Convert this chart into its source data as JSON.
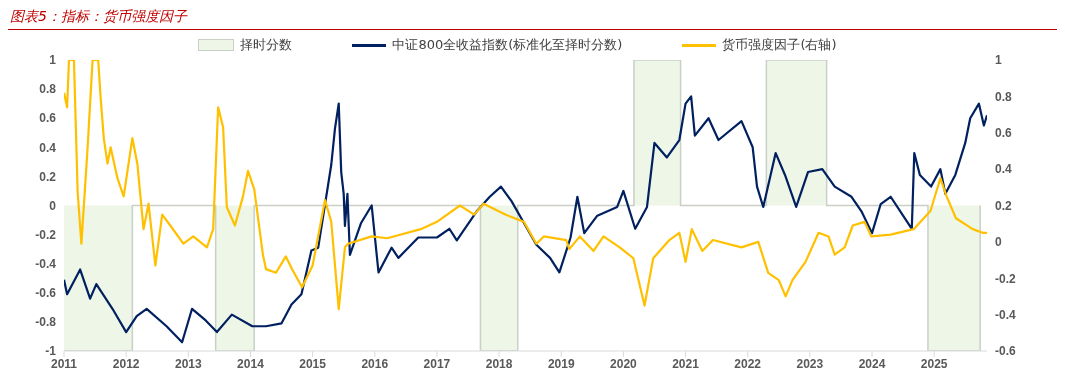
{
  "chart_data": {
    "type": "line",
    "title": "图表5：指标：货币强度因子",
    "legend": "top",
    "xlim": [
      2011,
      2025.85
    ],
    "xticks": [
      2011,
      2012,
      2013,
      2014,
      2015,
      2016,
      2017,
      2018,
      2019,
      2020,
      2021,
      2022,
      2023,
      2024,
      2025
    ],
    "ylim": [
      -1,
      1
    ],
    "yticks": [
      -1,
      -0.8,
      -0.6,
      -0.4,
      -0.2,
      0,
      0.2,
      0.4,
      0.6,
      0.8,
      1
    ],
    "y2lim": [
      -0.6,
      1
    ],
    "y2ticks": [
      -0.6,
      -0.4,
      -0.2,
      0,
      0.2,
      0.4,
      0.6,
      0.8,
      1
    ],
    "series": [
      {
        "name": "择时分数",
        "type": "area",
        "color": "#eef6e8",
        "x": [
          2011.0,
          2012.1,
          2013.44,
          2014.06,
          2017.7,
          2018.3,
          2020.17,
          2020.92,
          2022.3,
          2023.27,
          2024.9,
          2025.74
        ],
        "values": [
          -1,
          0,
          -1,
          0,
          -1,
          0,
          1,
          0,
          1,
          0,
          -1,
          0
        ]
      },
      {
        "name": "中证800全收益指数(标准化至择时分数)",
        "color": "#002060",
        "x": [
          2011.0,
          2011.05,
          2011.26,
          2011.42,
          2011.52,
          2011.78,
          2012.0,
          2012.17,
          2012.33,
          2012.65,
          2012.9,
          2013.06,
          2013.28,
          2013.46,
          2013.7,
          2014.03,
          2014.25,
          2014.5,
          2014.66,
          2014.82,
          2014.98,
          2015.09,
          2015.3,
          2015.36,
          2015.42,
          2015.46,
          2015.5,
          2015.52,
          2015.56,
          2015.6,
          2015.78,
          2015.95,
          2016.06,
          2016.27,
          2016.38,
          2016.7,
          2017.0,
          2017.2,
          2017.32,
          2017.64,
          2017.85,
          2018.03,
          2018.2,
          2018.4,
          2018.6,
          2018.82,
          2018.97,
          2019.15,
          2019.26,
          2019.37,
          2019.58,
          2019.9,
          2020.0,
          2020.19,
          2020.38,
          2020.5,
          2020.7,
          2020.9,
          2021.0,
          2021.09,
          2021.15,
          2021.37,
          2021.53,
          2021.9,
          2022.08,
          2022.15,
          2022.25,
          2022.45,
          2022.6,
          2022.78,
          2022.97,
          2023.2,
          2023.4,
          2023.67,
          2023.83,
          2024.0,
          2024.14,
          2024.3,
          2024.5,
          2024.64,
          2024.68,
          2024.77,
          2024.95,
          2025.1,
          2025.18,
          2025.34,
          2025.5,
          2025.58,
          2025.72,
          2025.8,
          2025.85
        ],
        "values": [
          -0.51,
          -0.61,
          -0.44,
          -0.64,
          -0.54,
          -0.71,
          -0.87,
          -0.76,
          -0.71,
          -0.83,
          -0.94,
          -0.71,
          -0.79,
          -0.87,
          -0.75,
          -0.83,
          -0.83,
          -0.81,
          -0.68,
          -0.61,
          -0.31,
          -0.29,
          0.28,
          0.53,
          0.7,
          0.23,
          0.08,
          -0.14,
          0.08,
          -0.34,
          -0.12,
          0.0,
          -0.46,
          -0.29,
          -0.36,
          -0.22,
          -0.22,
          -0.16,
          -0.24,
          -0.04,
          0.06,
          0.13,
          0.03,
          -0.12,
          -0.27,
          -0.36,
          -0.46,
          -0.22,
          0.06,
          -0.19,
          -0.07,
          -0.01,
          0.1,
          -0.16,
          -0.01,
          0.43,
          0.33,
          0.45,
          0.7,
          0.75,
          0.48,
          0.6,
          0.45,
          0.58,
          0.4,
          0.13,
          -0.01,
          0.36,
          0.21,
          -0.01,
          0.23,
          0.25,
          0.13,
          0.06,
          -0.04,
          -0.19,
          0.01,
          0.06,
          -0.07,
          -0.16,
          0.36,
          0.21,
          0.13,
          0.25,
          0.08,
          0.21,
          0.43,
          0.6,
          0.7,
          0.55,
          0.62
        ]
      },
      {
        "name": "货币强度因子(右轴)",
        "color": "#ffc000",
        "axis": "y2",
        "x": [
          2011.0,
          2011.05,
          2011.08,
          2011.16,
          2011.22,
          2011.28,
          2011.38,
          2011.46,
          2011.55,
          2011.59,
          2011.64,
          2011.7,
          2011.75,
          2011.86,
          2011.96,
          2012.1,
          2012.18,
          2012.28,
          2012.36,
          2012.47,
          2012.58,
          2012.71,
          2012.92,
          2013.08,
          2013.3,
          2013.4,
          2013.48,
          2013.56,
          2013.62,
          2013.75,
          2013.88,
          2013.96,
          2014.06,
          2014.2,
          2014.25,
          2014.41,
          2014.57,
          2014.67,
          2014.83,
          2015.0,
          2015.2,
          2015.3,
          2015.42,
          2015.52,
          2015.57,
          2015.95,
          2016.2,
          2016.74,
          2017.0,
          2017.37,
          2017.6,
          2017.75,
          2018.1,
          2018.4,
          2018.6,
          2018.72,
          2019.08,
          2019.13,
          2019.3,
          2019.52,
          2019.68,
          2019.94,
          2020.16,
          2020.34,
          2020.48,
          2020.74,
          2020.9,
          2021.0,
          2021.1,
          2021.27,
          2021.44,
          2021.9,
          2022.17,
          2022.33,
          2022.5,
          2022.61,
          2022.72,
          2022.93,
          2023.14,
          2023.3,
          2023.4,
          2023.56,
          2023.69,
          2023.88,
          2023.99,
          2024.3,
          2024.67,
          2024.94,
          2025.1,
          2025.2,
          2025.35,
          2025.62,
          2025.78,
          2025.85
        ],
        "values": [
          0.82,
          0.74,
          1,
          1,
          0.27,
          -0.01,
          0.52,
          1,
          1,
          0.79,
          0.57,
          0.43,
          0.52,
          0.35,
          0.25,
          0.57,
          0.43,
          0.07,
          0.21,
          -0.13,
          0.15,
          0.09,
          -0.01,
          0.03,
          -0.03,
          0.07,
          0.74,
          0.63,
          0.19,
          0.09,
          0.25,
          0.39,
          0.29,
          -0.07,
          -0.15,
          -0.17,
          -0.08,
          -0.15,
          -0.25,
          -0.13,
          0.23,
          0.11,
          -0.37,
          -0.03,
          -0.01,
          0.03,
          0.02,
          0.07,
          0.11,
          0.2,
          0.15,
          0.21,
          0.15,
          0.11,
          -0.01,
          0.03,
          0.01,
          -0.04,
          0.03,
          -0.05,
          0.03,
          -0.03,
          -0.09,
          -0.35,
          -0.09,
          0.01,
          0.05,
          -0.11,
          0.07,
          -0.05,
          0.01,
          -0.03,
          0.0,
          -0.17,
          -0.21,
          -0.3,
          -0.21,
          -0.11,
          0.05,
          0.03,
          -0.07,
          -0.03,
          0.09,
          0.11,
          0.03,
          0.04,
          0.07,
          0.17,
          0.35,
          0.25,
          0.13,
          0.07,
          0.05,
          0.05
        ]
      }
    ]
  }
}
